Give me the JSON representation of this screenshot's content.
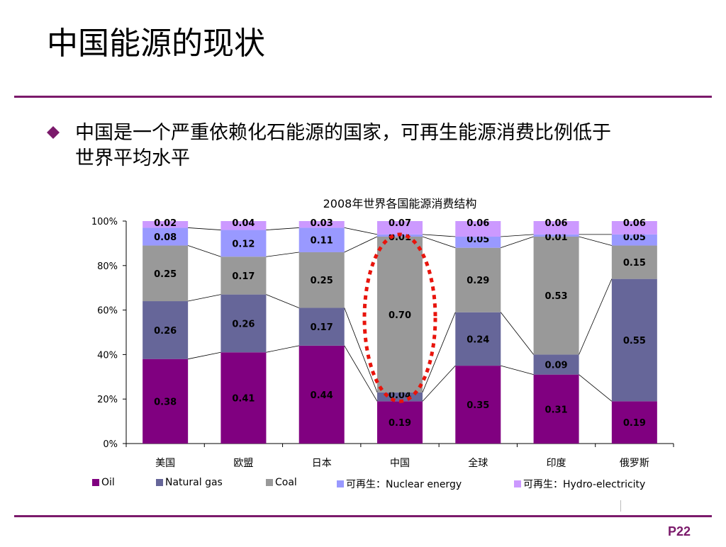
{
  "slide": {
    "title": "中国能源的现状",
    "bullet": "中国是一个严重依赖化石能源的国家，可再生能源消费比例低于世界平均水平",
    "page_number": "P22"
  },
  "colors": {
    "accent": "#7b1a6b",
    "oil": "#800080",
    "natural_gas": "#666699",
    "coal": "#999999",
    "nuclear": "#9999ff",
    "hydro": "#cc99ff",
    "highlight": "#e8140c"
  },
  "chart_data": {
    "type": "bar",
    "stacked": true,
    "percent": true,
    "title": "2008年世界各国能源消费结构",
    "categories": [
      "美国",
      "欧盟",
      "日本",
      "中国",
      "全球",
      "印度",
      "俄罗斯"
    ],
    "yticks": [
      "0%",
      "20%",
      "40%",
      "60%",
      "80%",
      "100%"
    ],
    "ylim": [
      0,
      1
    ],
    "series": [
      {
        "name": "Oil",
        "values": [
          0.38,
          0.41,
          0.44,
          0.19,
          0.35,
          0.31,
          0.19
        ],
        "labels": [
          "0.38",
          "0.41",
          "0.44",
          "0.19",
          "0.35",
          "0.31",
          "0.19"
        ]
      },
      {
        "name": "Natural gas",
        "values": [
          0.26,
          0.26,
          0.17,
          0.04,
          0.24,
          0.09,
          0.55
        ],
        "labels": [
          "0.26",
          "0.26",
          "0.17",
          "0.04",
          "0.24",
          "0.09",
          "0.55"
        ]
      },
      {
        "name": "Coal",
        "values": [
          0.25,
          0.17,
          0.25,
          0.7,
          0.29,
          0.53,
          0.15
        ],
        "labels": [
          "0.25",
          "0.17",
          "0.25",
          "0.70",
          "0.29",
          "0.53",
          "0.15"
        ]
      },
      {
        "name": "可再生：Nuclear energy",
        "values": [
          0.08,
          0.12,
          0.11,
          0.01,
          0.05,
          0.01,
          0.05
        ],
        "labels": [
          "0.08",
          "0.12",
          "0.11",
          "0.01",
          "0.05",
          "0.01",
          "0.05"
        ]
      },
      {
        "name": "可再生：Hydro-electricity",
        "values": [
          0.02,
          0.04,
          0.03,
          0.07,
          0.06,
          0.06,
          0.06
        ],
        "labels": [
          "0.02",
          "0.04",
          "0.03",
          "0.07",
          "0.06",
          "0.06",
          "0.06"
        ]
      }
    ],
    "series_lines": true,
    "highlight_category": "中国",
    "grid": false,
    "legend_position": "bottom"
  }
}
